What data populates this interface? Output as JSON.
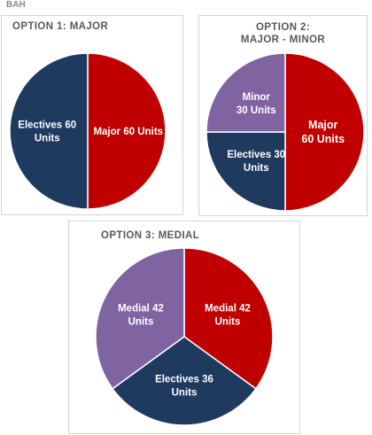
{
  "corner_label": "BAH",
  "colors": {
    "red": "#c00000",
    "navy": "#1f3a5f",
    "purple": "#8064a2"
  },
  "chart_data": [
    {
      "type": "pie",
      "title": "OPTION 1:  MAJOR",
      "slices": [
        {
          "label_lines": [
            "Major 60 Units"
          ],
          "value": 60,
          "color": "#c00000"
        },
        {
          "label_lines": [
            "Electives 60",
            "Units"
          ],
          "value": 60,
          "color": "#1f3a5f"
        }
      ]
    },
    {
      "type": "pie",
      "title": "OPTION 2:\nMAJOR - MINOR",
      "slices": [
        {
          "label_lines": [
            "Major",
            "60 Units"
          ],
          "value": 60,
          "color": "#c00000"
        },
        {
          "label_lines": [
            "Electives 30",
            "Units"
          ],
          "value": 30,
          "color": "#1f3a5f"
        },
        {
          "label_lines": [
            "Minor",
            "30 Units"
          ],
          "value": 30,
          "color": "#8064a2"
        }
      ]
    },
    {
      "type": "pie",
      "title": "OPTION 3:  MEDIAL",
      "slices": [
        {
          "label_lines": [
            "Medial 42",
            "Units"
          ],
          "value": 42,
          "color": "#c00000"
        },
        {
          "label_lines": [
            "Electives 36",
            "Units"
          ],
          "value": 36,
          "color": "#1f3a5f"
        },
        {
          "label_lines": [
            "Medial 42",
            "Units"
          ],
          "value": 42,
          "color": "#8064a2"
        }
      ]
    }
  ]
}
